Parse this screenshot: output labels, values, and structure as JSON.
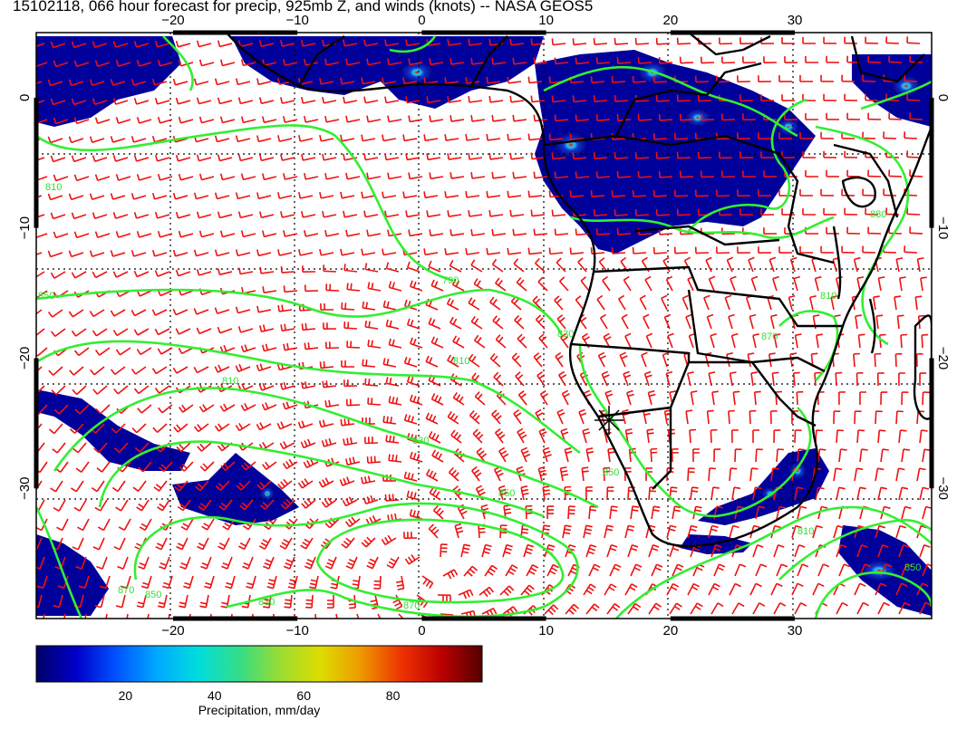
{
  "title": "15102118, 066 hour forecast for precip, 925mb Z, and winds (knots) -- NASA GEOS5",
  "colors": {
    "contour": "#33ee33",
    "wind_barb": "#ee1111",
    "coastline": "#000000",
    "grid": "#000000",
    "precip_low": "#000080",
    "precip_high": "#800000"
  },
  "map": {
    "lon_range": [
      -31,
      41
    ],
    "lat_range": [
      5,
      -40
    ],
    "lon_ticks": [
      {
        "value": -20,
        "label": "−20"
      },
      {
        "value": -10,
        "label": "−10"
      },
      {
        "value": 0,
        "label": "0"
      },
      {
        "value": 10,
        "label": "10"
      },
      {
        "value": 20,
        "label": "20"
      },
      {
        "value": 30,
        "label": "30"
      }
    ],
    "lat_ticks": [
      {
        "value": 0,
        "label": "0"
      },
      {
        "value": -10,
        "label": "−10"
      },
      {
        "value": -20,
        "label": "−20"
      },
      {
        "value": -30,
        "label": "−30"
      }
    ],
    "contour_labels": [
      "790",
      "810",
      "830",
      "850",
      "870",
      "810",
      "810",
      "850",
      "830",
      "850",
      "870",
      "810",
      "850",
      "880",
      "810",
      "870",
      "830",
      "850"
    ]
  },
  "colorbar": {
    "range": [
      0,
      100
    ],
    "ticks": [
      {
        "value": 20,
        "label": "20"
      },
      {
        "value": 40,
        "label": "40"
      },
      {
        "value": 60,
        "label": "60"
      },
      {
        "value": 80,
        "label": "80"
      }
    ],
    "title": "Precipitation, mm/day",
    "stops": [
      "#000066",
      "#0000cc",
      "#0055ff",
      "#00aaff",
      "#00dddd",
      "#33dd88",
      "#99dd33",
      "#dddd00",
      "#ee9900",
      "#ee3300",
      "#bb0000",
      "#550000"
    ]
  }
}
